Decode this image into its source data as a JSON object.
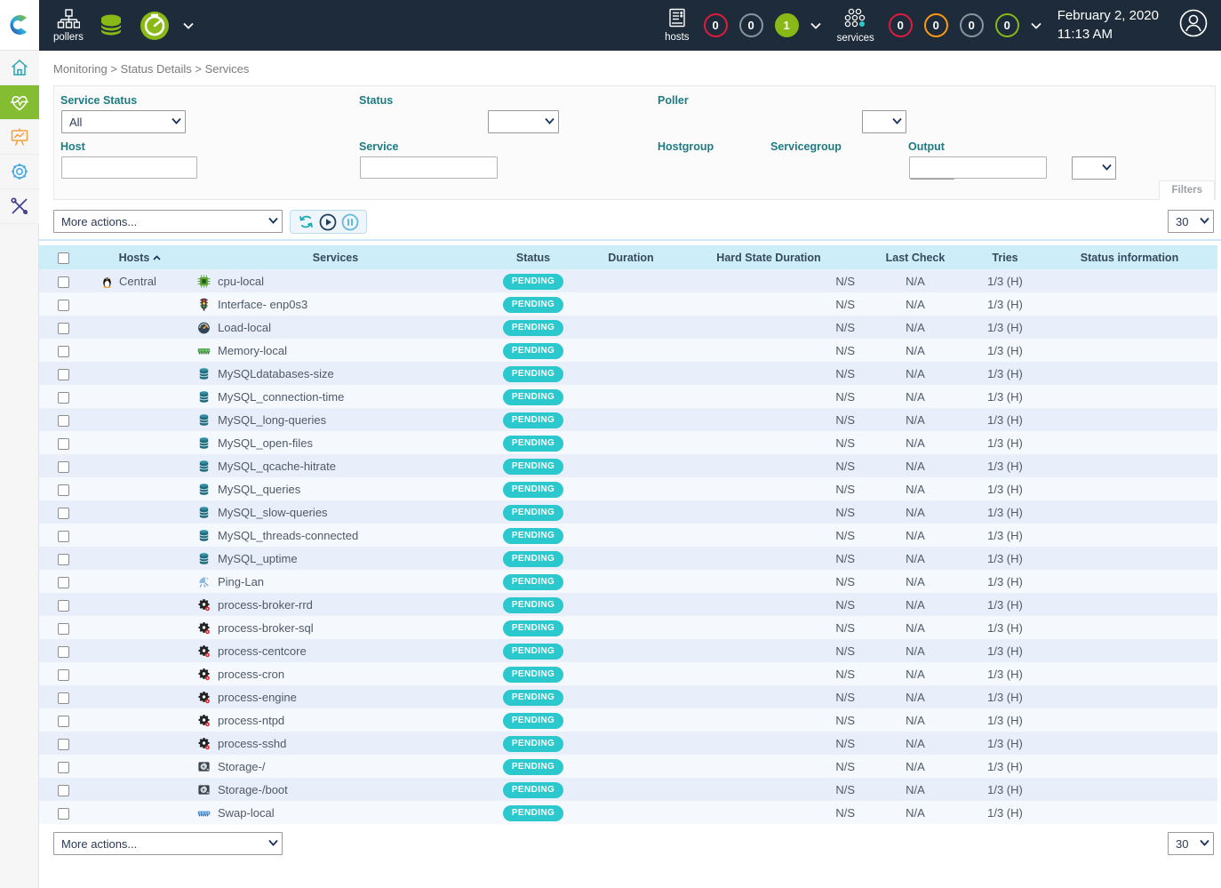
{
  "topbar": {
    "pollers_label": "pollers",
    "hosts_label": "hosts",
    "services_label": "services",
    "hosts_counters": [
      {
        "value": "0",
        "type": "critical"
      },
      {
        "value": "0",
        "type": "unknown"
      },
      {
        "value": "1",
        "type": "ok-filled"
      }
    ],
    "services_counters": [
      {
        "value": "0",
        "type": "critical"
      },
      {
        "value": "0",
        "type": "warning"
      },
      {
        "value": "0",
        "type": "unknown"
      },
      {
        "value": "0",
        "type": "ok"
      }
    ],
    "date": "February 2, 2020",
    "time": "11:13 AM"
  },
  "sidebar": {
    "items": [
      {
        "icon": "home-icon",
        "active": false
      },
      {
        "icon": "monitoring-icon",
        "active": true
      },
      {
        "icon": "reporting-icon",
        "active": false
      },
      {
        "icon": "configuration-icon",
        "active": false
      },
      {
        "icon": "administration-icon",
        "active": false
      }
    ]
  },
  "breadcrumb": [
    "Monitoring",
    "Status Details",
    "Services"
  ],
  "filters": {
    "service_status": {
      "label": "Service Status",
      "value": "All"
    },
    "status": {
      "label": "Status",
      "value": ""
    },
    "poller": {
      "label": "Poller",
      "value": ""
    },
    "host": {
      "label": "Host",
      "value": ""
    },
    "service": {
      "label": "Service",
      "value": ""
    },
    "hostgroup": {
      "label": "Hostgroup",
      "value": ""
    },
    "servicegroup": {
      "label": "Servicegroup",
      "value": ""
    },
    "output": {
      "label": "Output",
      "value": ""
    },
    "filters_button": "Filters"
  },
  "toolbar": {
    "more_actions": "More actions...",
    "page_size": "30"
  },
  "table": {
    "columns": [
      "Hosts",
      "Services",
      "Status",
      "Duration",
      "Hard State Duration",
      "Last Check",
      "Tries",
      "Status information"
    ],
    "sorted_by": "Hosts",
    "sort_direction": "asc",
    "rows": [
      {
        "host": "Central",
        "host_icon": "linux",
        "icon": "cpu",
        "service": "cpu-local",
        "status": "PENDING",
        "duration": "",
        "hard_state": "N/S",
        "last_check": "N/A",
        "tries": "1/3 (H)",
        "info": ""
      },
      {
        "host": "",
        "host_icon": "",
        "icon": "traffic",
        "service": "Interface- enp0s3",
        "status": "PENDING",
        "duration": "",
        "hard_state": "N/S",
        "last_check": "N/A",
        "tries": "1/3 (H)",
        "info": ""
      },
      {
        "host": "",
        "host_icon": "",
        "icon": "gauge",
        "service": "Load-local",
        "status": "PENDING",
        "duration": "",
        "hard_state": "N/S",
        "last_check": "N/A",
        "tries": "1/3 (H)",
        "info": ""
      },
      {
        "host": "",
        "host_icon": "",
        "icon": "memory",
        "service": "Memory-local",
        "status": "PENDING",
        "duration": "",
        "hard_state": "N/S",
        "last_check": "N/A",
        "tries": "1/3 (H)",
        "info": ""
      },
      {
        "host": "",
        "host_icon": "",
        "icon": "database",
        "service": "MySQLdatabases-size",
        "status": "PENDING",
        "duration": "",
        "hard_state": "N/S",
        "last_check": "N/A",
        "tries": "1/3 (H)",
        "info": ""
      },
      {
        "host": "",
        "host_icon": "",
        "icon": "database",
        "service": "MySQL_connection-time",
        "status": "PENDING",
        "duration": "",
        "hard_state": "N/S",
        "last_check": "N/A",
        "tries": "1/3 (H)",
        "info": ""
      },
      {
        "host": "",
        "host_icon": "",
        "icon": "database",
        "service": "MySQL_long-queries",
        "status": "PENDING",
        "duration": "",
        "hard_state": "N/S",
        "last_check": "N/A",
        "tries": "1/3 (H)",
        "info": ""
      },
      {
        "host": "",
        "host_icon": "",
        "icon": "database",
        "service": "MySQL_open-files",
        "status": "PENDING",
        "duration": "",
        "hard_state": "N/S",
        "last_check": "N/A",
        "tries": "1/3 (H)",
        "info": ""
      },
      {
        "host": "",
        "host_icon": "",
        "icon": "database",
        "service": "MySQL_qcache-hitrate",
        "status": "PENDING",
        "duration": "",
        "hard_state": "N/S",
        "last_check": "N/A",
        "tries": "1/3 (H)",
        "info": ""
      },
      {
        "host": "",
        "host_icon": "",
        "icon": "database",
        "service": "MySQL_queries",
        "status": "PENDING",
        "duration": "",
        "hard_state": "N/S",
        "last_check": "N/A",
        "tries": "1/3 (H)",
        "info": ""
      },
      {
        "host": "",
        "host_icon": "",
        "icon": "database",
        "service": "MySQL_slow-queries",
        "status": "PENDING",
        "duration": "",
        "hard_state": "N/S",
        "last_check": "N/A",
        "tries": "1/3 (H)",
        "info": ""
      },
      {
        "host": "",
        "host_icon": "",
        "icon": "database",
        "service": "MySQL_threads-connected",
        "status": "PENDING",
        "duration": "",
        "hard_state": "N/S",
        "last_check": "N/A",
        "tries": "1/3 (H)",
        "info": ""
      },
      {
        "host": "",
        "host_icon": "",
        "icon": "database",
        "service": "MySQL_uptime",
        "status": "PENDING",
        "duration": "",
        "hard_state": "N/S",
        "last_check": "N/A",
        "tries": "1/3 (H)",
        "info": ""
      },
      {
        "host": "",
        "host_icon": "",
        "icon": "satellite",
        "service": "Ping-Lan",
        "status": "PENDING",
        "duration": "",
        "hard_state": "N/S",
        "last_check": "N/A",
        "tries": "1/3 (H)",
        "info": ""
      },
      {
        "host": "",
        "host_icon": "",
        "icon": "gear",
        "service": "process-broker-rrd",
        "status": "PENDING",
        "duration": "",
        "hard_state": "N/S",
        "last_check": "N/A",
        "tries": "1/3 (H)",
        "info": ""
      },
      {
        "host": "",
        "host_icon": "",
        "icon": "gear",
        "service": "process-broker-sql",
        "status": "PENDING",
        "duration": "",
        "hard_state": "N/S",
        "last_check": "N/A",
        "tries": "1/3 (H)",
        "info": ""
      },
      {
        "host": "",
        "host_icon": "",
        "icon": "gear",
        "service": "process-centcore",
        "status": "PENDING",
        "duration": "",
        "hard_state": "N/S",
        "last_check": "N/A",
        "tries": "1/3 (H)",
        "info": ""
      },
      {
        "host": "",
        "host_icon": "",
        "icon": "gear",
        "service": "process-cron",
        "status": "PENDING",
        "duration": "",
        "hard_state": "N/S",
        "last_check": "N/A",
        "tries": "1/3 (H)",
        "info": ""
      },
      {
        "host": "",
        "host_icon": "",
        "icon": "gear",
        "service": "process-engine",
        "status": "PENDING",
        "duration": "",
        "hard_state": "N/S",
        "last_check": "N/A",
        "tries": "1/3 (H)",
        "info": ""
      },
      {
        "host": "",
        "host_icon": "",
        "icon": "gear",
        "service": "process-ntpd",
        "status": "PENDING",
        "duration": "",
        "hard_state": "N/S",
        "last_check": "N/A",
        "tries": "1/3 (H)",
        "info": ""
      },
      {
        "host": "",
        "host_icon": "",
        "icon": "gear",
        "service": "process-sshd",
        "status": "PENDING",
        "duration": "",
        "hard_state": "N/S",
        "last_check": "N/A",
        "tries": "1/3 (H)",
        "info": ""
      },
      {
        "host": "",
        "host_icon": "",
        "icon": "disk",
        "service": "Storage-/",
        "status": "PENDING",
        "duration": "",
        "hard_state": "N/S",
        "last_check": "N/A",
        "tries": "1/3 (H)",
        "info": ""
      },
      {
        "host": "",
        "host_icon": "",
        "icon": "disk",
        "service": "Storage-/boot",
        "status": "PENDING",
        "duration": "",
        "hard_state": "N/S",
        "last_check": "N/A",
        "tries": "1/3 (H)",
        "info": ""
      },
      {
        "host": "",
        "host_icon": "",
        "icon": "swap",
        "service": "Swap-local",
        "status": "PENDING",
        "duration": "",
        "hard_state": "N/S",
        "last_check": "N/A",
        "tries": "1/3 (H)",
        "info": ""
      }
    ]
  },
  "colors": {
    "topbar_bg": "#1e2b3a",
    "accent_green": "#88b917",
    "sidebar_active_green": "#84bd32",
    "pending_badge": "#2bc8ce",
    "critical_red": "#e01b3d",
    "warning_orange": "#ff9913",
    "unknown_gray": "#8b959e",
    "table_header_bg": "#cdedf8",
    "row_odd": "#e9effa",
    "row_even": "#f5f8fd",
    "filter_label_teal": "#1d7b84"
  }
}
